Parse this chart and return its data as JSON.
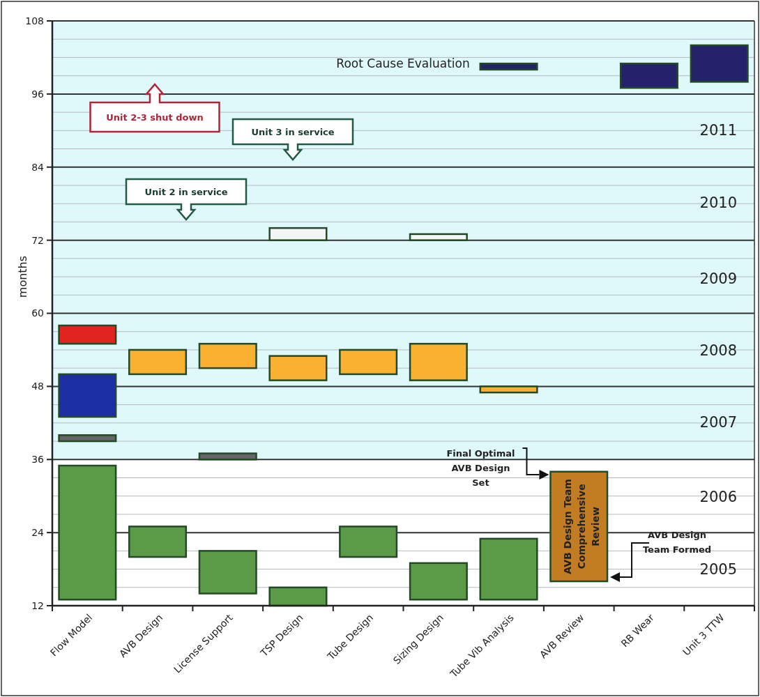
{
  "chart_data": {
    "type": "bar",
    "ylabel": "months",
    "categories": [
      "Flow Model",
      "AVB Design",
      "License Support",
      "TSP Design",
      "Tube Design",
      "Sizing Design",
      "Tube Vib Analysis",
      "AVB Review",
      "RB Wear",
      "Unit 3 TTW"
    ],
    "series": [
      {
        "color": "#5b9a47",
        "base": [
          13,
          20,
          14,
          12,
          20,
          13,
          13,
          null,
          null,
          null
        ],
        "values": [
          22,
          5,
          7,
          3,
          5,
          6,
          10,
          null,
          null,
          null
        ]
      },
      {
        "color": "#666666",
        "base": [
          39,
          null,
          36,
          null,
          null,
          null,
          null,
          null,
          null,
          null
        ],
        "values": [
          1,
          null,
          1,
          null,
          null,
          null,
          null,
          null,
          null,
          null
        ]
      },
      {
        "color": "#1c2fa3",
        "base": [
          43,
          null,
          null,
          null,
          null,
          null,
          null,
          null,
          null,
          null
        ],
        "values": [
          7,
          null,
          null,
          null,
          null,
          null,
          null,
          null,
          null,
          null
        ]
      },
      {
        "color": "#e0241f",
        "base": [
          55,
          null,
          null,
          null,
          null,
          null,
          null,
          null,
          null,
          null
        ],
        "values": [
          3,
          null,
          null,
          null,
          null,
          null,
          null,
          null,
          null,
          null
        ]
      },
      {
        "color": "#f9b131",
        "base": [
          null,
          50,
          51,
          49,
          50,
          49,
          47,
          null,
          null,
          null
        ],
        "values": [
          null,
          4,
          4,
          4,
          4,
          6,
          1,
          null,
          null,
          null
        ]
      },
      {
        "color": "#f4f6f6",
        "base": [
          null,
          null,
          null,
          72,
          null,
          72,
          null,
          null,
          null,
          null
        ],
        "values": [
          null,
          null,
          null,
          2,
          null,
          1,
          null,
          null,
          null,
          null
        ]
      },
      {
        "color": "#24226a",
        "base": [
          null,
          null,
          null,
          null,
          null,
          null,
          100,
          null,
          97,
          98
        ],
        "values": [
          null,
          null,
          null,
          null,
          null,
          null,
          1,
          null,
          4,
          6
        ]
      },
      {
        "color": "#c27d22",
        "base": [
          null,
          null,
          null,
          null,
          null,
          null,
          null,
          16,
          null,
          null
        ],
        "values": [
          null,
          null,
          null,
          null,
          null,
          null,
          null,
          18,
          null,
          null
        ]
      }
    ],
    "ylim": [
      12,
      108
    ],
    "yticks": [
      12,
      {
        "value": 15,
        "label": null
      },
      {
        "value": 18,
        "label": null
      },
      {
        "value": 21,
        "label": null
      },
      24,
      {
        "value": 27,
        "label": null
      },
      {
        "value": 30,
        "label": null
      },
      {
        "value": 33,
        "label": null
      },
      36,
      {
        "value": 39,
        "label": null
      },
      {
        "value": 42,
        "label": null
      },
      {
        "value": 45,
        "label": null
      },
      48,
      {
        "value": 51,
        "label": null
      },
      {
        "value": 54,
        "label": null
      },
      {
        "value": 57,
        "label": null
      },
      60,
      {
        "value": 63,
        "label": null
      },
      {
        "value": 66,
        "label": null
      },
      {
        "value": 69,
        "label": null
      },
      72,
      {
        "value": 75,
        "label": null
      },
      {
        "value": 78,
        "label": null
      },
      {
        "value": 81,
        "label": null
      },
      84,
      {
        "value": 87,
        "label": null
      },
      {
        "value": 90,
        "label": null
      },
      {
        "value": 93,
        "label": null
      },
      96,
      {
        "value": 99,
        "label": null
      },
      {
        "value": 102,
        "label": null
      },
      {
        "value": 105,
        "label": null
      },
      108
    ],
    "grid": "y",
    "bands": [
      {
        "axis": "y",
        "from": 36,
        "to": 108,
        "color": "#dff8fa"
      }
    ],
    "annotations": [
      {
        "text": "Root Cause Evaluation",
        "x": "Tube Vib Analysis",
        "y": 101
      },
      "Unit 2-3 shut down",
      "Unit 3 in service",
      "Unit 2 in service",
      "Final Optimal AVB Design Set",
      "AVB Design Team Formed",
      "AVB Design Team Comprehensive Review",
      "2011",
      "2010",
      "2009",
      "2008",
      "2007",
      "2006",
      "2005"
    ]
  }
}
